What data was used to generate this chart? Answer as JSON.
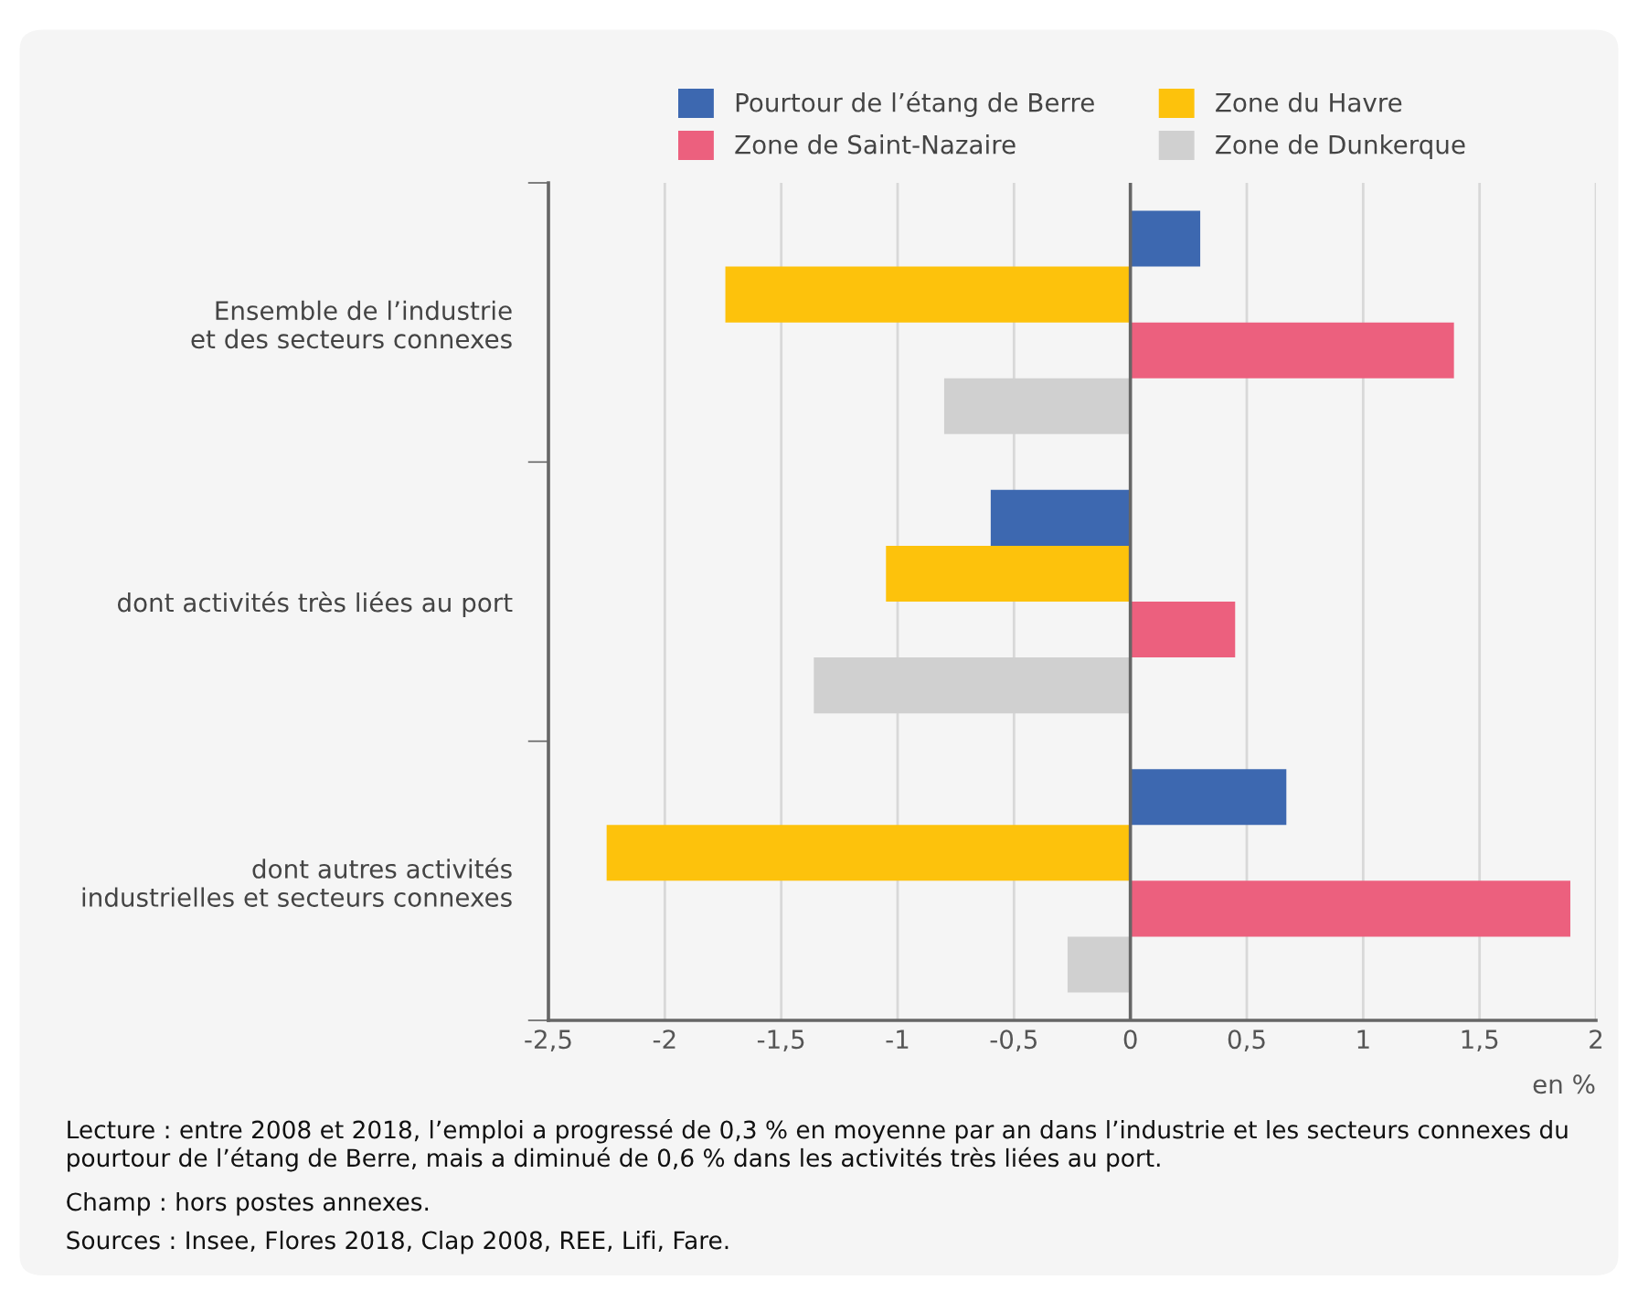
{
  "chart_data": {
    "type": "bar",
    "orientation": "horizontal",
    "categories": [
      "Ensemble de l’industrie\net des secteurs connexes",
      "dont activités très liées au port",
      "dont autres activités\nindustrielles et secteurs connexes"
    ],
    "series": [
      {
        "name": "Pourtour de l’étang de Berre",
        "color": "#3d68b0",
        "values": [
          0.3,
          -0.6,
          0.67
        ]
      },
      {
        "name": "Zone du Havre",
        "color": "#fdc20c",
        "values": [
          -1.74,
          -1.05,
          -2.25
        ]
      },
      {
        "name": "Zone de Saint-Nazaire",
        "color": "#ec607e",
        "values": [
          1.39,
          0.45,
          1.89
        ]
      },
      {
        "name": "Zone de Dunkerque",
        "color": "#d0d0d0",
        "values": [
          -0.8,
          -1.36,
          -0.27
        ]
      }
    ],
    "xlim": [
      -2.5,
      2
    ],
    "xticks": [
      {
        "value": -2.5,
        "label": "-2,5"
      },
      -2,
      {
        "value": -1.5,
        "label": "-1,5"
      },
      -1,
      {
        "value": -0.5,
        "label": "-0,5"
      },
      0,
      {
        "value": 0.5,
        "label": "0,5"
      },
      1,
      {
        "value": 1.5,
        "label": "1,5"
      },
      2
    ],
    "xlabel": "en %",
    "grid": "x",
    "legend": "top",
    "annotations": [
      "Lecture : entre 2008 et 2018, l’emploi a progressé de 0,3 % en moyenne par an dans l’industrie et les secteurs connexes du pourtour de l’étang de Berre, mais a diminué de 0,6 % dans les activités très liées au port.",
      "Champ : hors postes annexes.",
      "Sources : Insee, Flores 2018, Clap 2008, REE, Lifi, Fare."
    ]
  }
}
